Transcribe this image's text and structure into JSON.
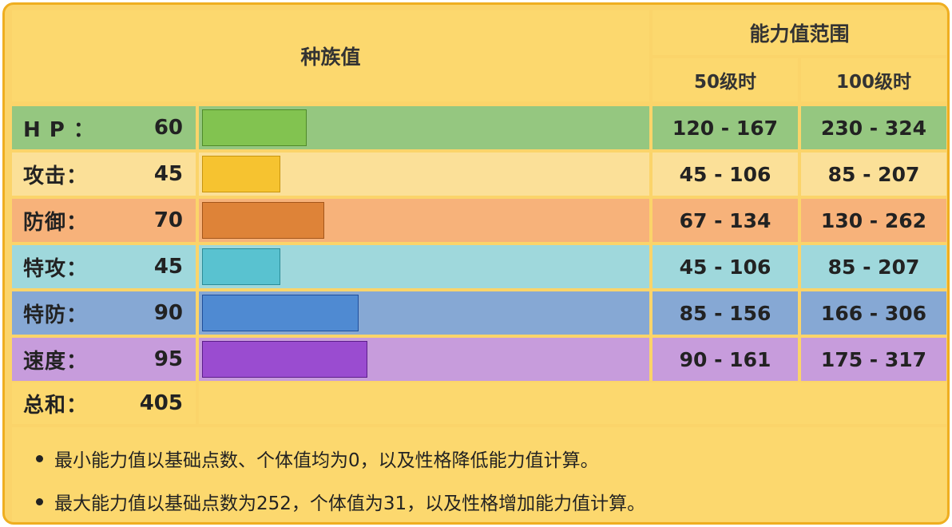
{
  "header": {
    "base_title": "种族值",
    "range_title": "能力值范围",
    "lv50": "50级时",
    "lv100": "100级时"
  },
  "stats": [
    {
      "label": "H P ：",
      "value": "60",
      "base": 60,
      "range50": "120 - 167",
      "range100": "230 - 324",
      "row_color": "#95c780",
      "left_color": "#95c780",
      "bar_color": "#82c350",
      "bar_border": "#4f8a2a",
      "range_color": "#95c780"
    },
    {
      "label": "攻击：",
      "value": "45",
      "base": 45,
      "range50": "45 - 106",
      "range100": "85 - 207",
      "row_color": "#fbe098",
      "left_color": "#fbe098",
      "bar_color": "#f6c330",
      "bar_border": "#c89510",
      "range_color": "#fbe098"
    },
    {
      "label": "防御：",
      "value": "70",
      "base": 70,
      "range50": "67 - 134",
      "range100": "130 - 262",
      "row_color": "#f7b27a",
      "left_color": "#f7b27a",
      "bar_color": "#de8338",
      "bar_border": "#a4561a",
      "range_color": "#f7b27a"
    },
    {
      "label": "特攻：",
      "value": "45",
      "base": 45,
      "range50": "45 - 106",
      "range100": "85 - 207",
      "row_color": "#9fd8dc",
      "left_color": "#9fd8dc",
      "bar_color": "#59c2d0",
      "bar_border": "#2c8c98",
      "range_color": "#9fd8dc"
    },
    {
      "label": "特防：",
      "value": "90",
      "base": 90,
      "range50": "85 - 156",
      "range100": "166 - 306",
      "row_color": "#86a8d4",
      "left_color": "#86a8d4",
      "bar_color": "#4f8ad2",
      "bar_border": "#1f4e9a",
      "range_color": "#86a8d4"
    },
    {
      "label": "速度：",
      "value": "95",
      "base": 95,
      "range50": "90 - 161",
      "range100": "175 - 317",
      "row_color": "#c79cdc",
      "left_color": "#c79cdc",
      "bar_color": "#9a4cd0",
      "bar_border": "#5c1e8a",
      "range_color": "#c79cdc"
    }
  ],
  "total": {
    "label": "总和：",
    "value": "405"
  },
  "notes": [
    "最小能力值以基础点数、个体值均为0，以及性格降低能力值计算。",
    "最大能力值以基础点数为252，个体值为31，以及性格增加能力值计算。"
  ],
  "colors": {
    "frame": "#fbd46a",
    "border": "#efae20",
    "cell": "#fcd86e"
  }
}
